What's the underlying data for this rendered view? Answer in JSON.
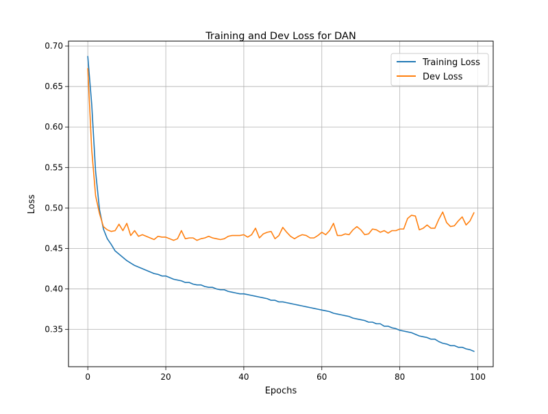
{
  "chart_data": {
    "type": "line",
    "title": "Training and Dev Loss for DAN",
    "xlabel": "Epochs",
    "ylabel": "Loss",
    "xlim": [
      -4.95,
      103.95
    ],
    "ylim": [
      0.304,
      0.706
    ],
    "xticks": [
      0,
      20,
      40,
      60,
      80,
      100
    ],
    "xtick_labels": [
      "0",
      "20",
      "40",
      "60",
      "80",
      "100"
    ],
    "yticks": [
      0.35,
      0.4,
      0.45,
      0.5,
      0.55,
      0.6,
      0.65,
      0.7
    ],
    "ytick_labels": [
      "0.35",
      "0.40",
      "0.45",
      "0.50",
      "0.55",
      "0.60",
      "0.65",
      "0.70"
    ],
    "grid": true,
    "legend_position": "top-right",
    "x": [
      0,
      1,
      2,
      3,
      4,
      5,
      6,
      7,
      8,
      9,
      10,
      11,
      12,
      13,
      14,
      15,
      16,
      17,
      18,
      19,
      20,
      21,
      22,
      23,
      24,
      25,
      26,
      27,
      28,
      29,
      30,
      31,
      32,
      33,
      34,
      35,
      36,
      37,
      38,
      39,
      40,
      41,
      42,
      43,
      44,
      45,
      46,
      47,
      48,
      49,
      50,
      51,
      52,
      53,
      54,
      55,
      56,
      57,
      58,
      59,
      60,
      61,
      62,
      63,
      64,
      65,
      66,
      67,
      68,
      69,
      70,
      71,
      72,
      73,
      74,
      75,
      76,
      77,
      78,
      79,
      80,
      81,
      82,
      83,
      84,
      85,
      86,
      87,
      88,
      89,
      90,
      91,
      92,
      93,
      94,
      95,
      96,
      97,
      98,
      99
    ],
    "series": [
      {
        "name": "Training Loss",
        "color": "#1f77b4",
        "values": [
          0.687,
          0.628,
          0.545,
          0.498,
          0.474,
          0.462,
          0.455,
          0.447,
          0.443,
          0.439,
          0.435,
          0.432,
          0.429,
          0.427,
          0.425,
          0.423,
          0.421,
          0.419,
          0.418,
          0.416,
          0.416,
          0.414,
          0.412,
          0.411,
          0.41,
          0.408,
          0.408,
          0.406,
          0.405,
          0.405,
          0.403,
          0.402,
          0.402,
          0.4,
          0.399,
          0.399,
          0.397,
          0.396,
          0.395,
          0.394,
          0.394,
          0.393,
          0.392,
          0.391,
          0.39,
          0.389,
          0.388,
          0.386,
          0.386,
          0.384,
          0.384,
          0.383,
          0.382,
          0.381,
          0.38,
          0.379,
          0.378,
          0.377,
          0.376,
          0.375,
          0.374,
          0.373,
          0.372,
          0.37,
          0.369,
          0.368,
          0.367,
          0.366,
          0.364,
          0.363,
          0.362,
          0.361,
          0.359,
          0.359,
          0.357,
          0.357,
          0.354,
          0.354,
          0.352,
          0.351,
          0.349,
          0.348,
          0.347,
          0.346,
          0.344,
          0.342,
          0.341,
          0.34,
          0.338,
          0.338,
          0.335,
          0.333,
          0.332,
          0.33,
          0.33,
          0.328,
          0.328,
          0.326,
          0.325,
          0.323
        ]
      },
      {
        "name": "Dev Loss",
        "color": "#ff7f0e",
        "values": [
          0.672,
          0.572,
          0.515,
          0.493,
          0.477,
          0.473,
          0.471,
          0.472,
          0.48,
          0.472,
          0.481,
          0.466,
          0.472,
          0.465,
          0.467,
          0.465,
          0.463,
          0.461,
          0.465,
          0.464,
          0.464,
          0.462,
          0.46,
          0.462,
          0.472,
          0.462,
          0.463,
          0.463,
          0.46,
          0.462,
          0.463,
          0.465,
          0.463,
          0.462,
          0.461,
          0.462,
          0.465,
          0.466,
          0.466,
          0.466,
          0.467,
          0.464,
          0.467,
          0.475,
          0.463,
          0.468,
          0.47,
          0.471,
          0.462,
          0.466,
          0.476,
          0.47,
          0.465,
          0.462,
          0.465,
          0.467,
          0.466,
          0.463,
          0.463,
          0.466,
          0.47,
          0.467,
          0.472,
          0.481,
          0.466,
          0.466,
          0.468,
          0.467,
          0.473,
          0.477,
          0.473,
          0.467,
          0.468,
          0.474,
          0.473,
          0.47,
          0.472,
          0.469,
          0.472,
          0.472,
          0.474,
          0.474,
          0.487,
          0.491,
          0.49,
          0.473,
          0.475,
          0.479,
          0.475,
          0.475,
          0.486,
          0.495,
          0.482,
          0.477,
          0.478,
          0.484,
          0.489,
          0.479,
          0.484,
          0.494
        ]
      }
    ]
  }
}
